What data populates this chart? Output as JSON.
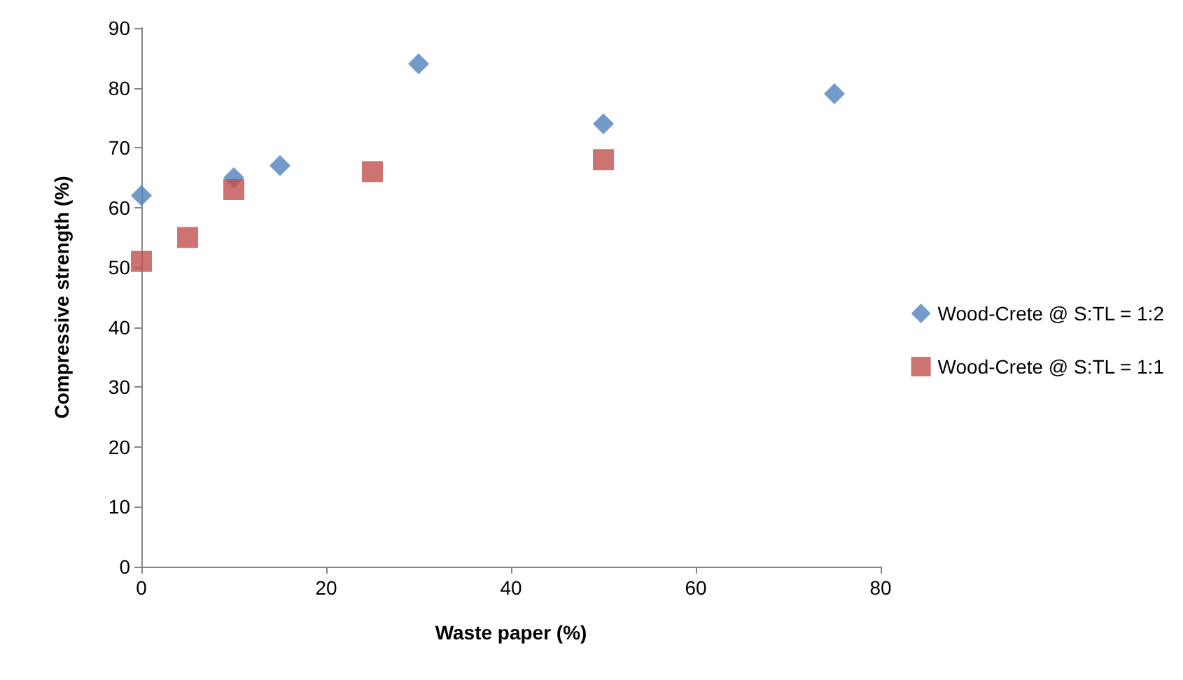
{
  "chart_data": {
    "type": "scatter",
    "xlabel": "Waste paper (%)",
    "ylabel": "Compressive strength (%)",
    "series": [
      {
        "name": "Wood-Crete @ S:TL = 1:2",
        "color": "#4f81bd",
        "marker": "diamond",
        "x": [
          0,
          10,
          15,
          30,
          50,
          75
        ],
        "values": [
          62,
          65,
          67,
          84,
          74,
          79
        ]
      },
      {
        "name": "Wood-Crete @ S:TL = 1:1",
        "color": "#c0504d",
        "marker": "square",
        "x": [
          0,
          5,
          10,
          25,
          50
        ],
        "values": [
          51,
          55,
          63,
          66,
          68
        ]
      }
    ],
    "xlim": [
      0,
      80
    ],
    "xticks": [
      0,
      20,
      40,
      60,
      80
    ],
    "ylim": [
      0,
      90
    ],
    "yticks": [
      0,
      10,
      20,
      30,
      40,
      50,
      60,
      70,
      80,
      90
    ],
    "grid": false,
    "legend": "right"
  }
}
